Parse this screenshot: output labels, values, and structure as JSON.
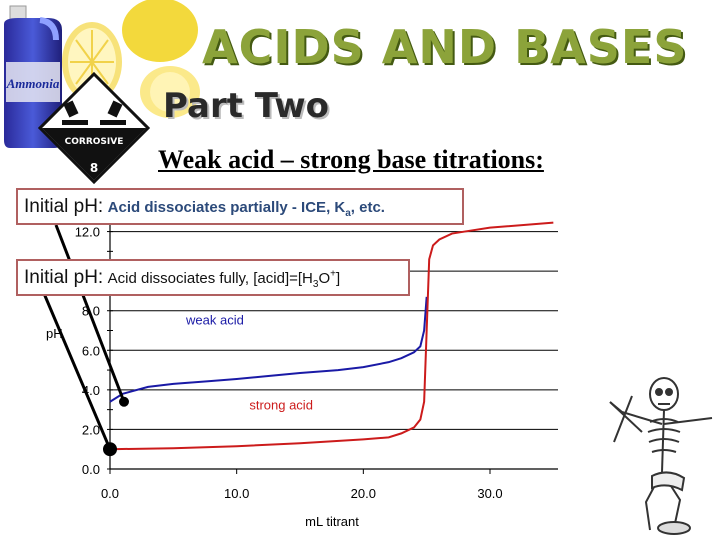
{
  "header": {
    "title": "ACIDS AND BASES",
    "subtitle": "Part Two",
    "bottle_label": "Ammonia",
    "hazard_label": "CORROSIVE",
    "hazard_class": "8"
  },
  "slide_title": "Weak acid – strong base titrations:",
  "callouts": [
    {
      "lead": "Initial pH:",
      "note": "Acid dissociates partially - ICE, K",
      "sub": "a",
      "tail": ", etc."
    },
    {
      "lead": "Initial pH:",
      "note": "Acid dissociates fully, [acid]=[H",
      "sub": "3",
      "mid": "O",
      "sup": "+",
      "tail": "]"
    }
  ],
  "colors": {
    "weak_acid": "#1a1aa6",
    "strong_acid": "#cc1b1b",
    "callout_border": "#b06060",
    "title_green": "#8ca33a"
  },
  "chart_data": {
    "type": "line",
    "xlabel": "mL titrant",
    "ylabel": "pH",
    "xlim": [
      0,
      30
    ],
    "ylim": [
      0,
      14
    ],
    "x_ticks": [
      "0.0",
      "10.0",
      "20.0",
      "30.0"
    ],
    "y_ticks": [
      "0.0",
      "2.0",
      "4.0",
      "6.0",
      "8.0",
      "12.0"
    ],
    "grid": true,
    "series": [
      {
        "name": "weak acid",
        "color": "#1a1aa6",
        "x": [
          0,
          1,
          3,
          5,
          8,
          10,
          12.5,
          15,
          18,
          20,
          22,
          23,
          24,
          24.5,
          24.8,
          25
        ],
        "y": [
          3.4,
          3.8,
          4.15,
          4.3,
          4.45,
          4.55,
          4.7,
          4.85,
          5.0,
          5.15,
          5.4,
          5.6,
          5.9,
          6.2,
          7.0,
          8.7
        ]
      },
      {
        "name": "strong acid",
        "color": "#cc1b1b",
        "x": [
          0,
          5,
          10,
          15,
          20,
          22,
          23,
          24,
          24.5,
          24.8,
          25,
          25.2,
          25.5,
          26,
          27,
          28,
          30,
          35
        ],
        "y": [
          1.0,
          1.05,
          1.15,
          1.3,
          1.5,
          1.6,
          1.8,
          2.1,
          2.5,
          3.4,
          7.0,
          10.6,
          11.3,
          11.6,
          11.9,
          12.0,
          12.2,
          12.45
        ]
      }
    ],
    "points": [
      {
        "x": 0,
        "y": 3.4
      },
      {
        "x": 0,
        "y": 1.0
      }
    ]
  }
}
